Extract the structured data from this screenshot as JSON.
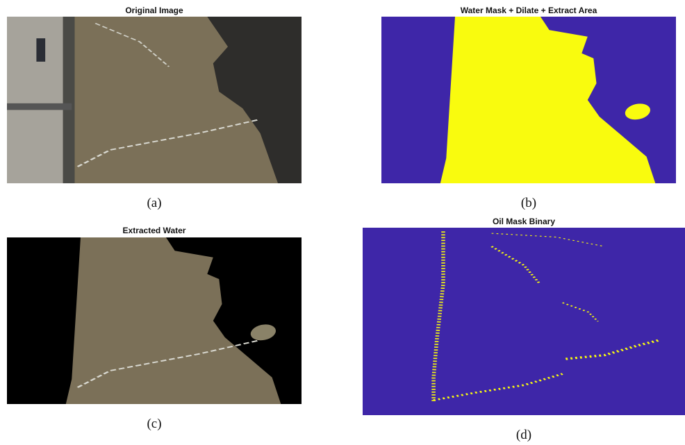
{
  "panels": [
    {
      "title": "Original Image",
      "caption": "(a)"
    },
    {
      "title": "Water Mask + Dilate + Extract Area",
      "caption": "(b)"
    },
    {
      "title": "Extracted Water",
      "caption": "(c)"
    },
    {
      "title": "Oil Mask Binary",
      "caption": "(d)"
    }
  ]
}
